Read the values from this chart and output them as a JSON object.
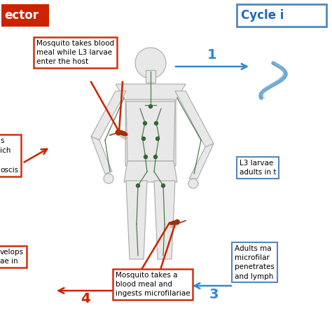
{
  "background_color": "#ffffff",
  "title_left": "ector",
  "title_right": "Cycle i",
  "title_left_color": "#cc2200",
  "title_right_color": "#2266bb",
  "title_left_bg": "#cc2200",
  "box1_text": "Mosquito takes blood\nmeal while L3 larvae\nenter the host",
  "box2_text": "L3 larvae \nadults in t",
  "box3_text": "Adults ma\nmicrofilar\npenetrates\nand lymph",
  "box4_text": "Mosquito takes a\nblood meal and\ningests microfilariae",
  "box5_text": "s\nich\n\noscis",
  "box6_text": "velops\nae in",
  "label1": "1",
  "label3": "3",
  "label4": "4",
  "arrow_blue": "#3388cc",
  "arrow_red": "#cc2200",
  "box_border_red": "#cc3311",
  "box_border_blue": "#5588bb",
  "body_outline": "#aaaaaa",
  "body_fill": "#e8e8e8",
  "lymph_color": "#336633",
  "mosquito_color": "#993311",
  "worm_color": "#5599cc"
}
